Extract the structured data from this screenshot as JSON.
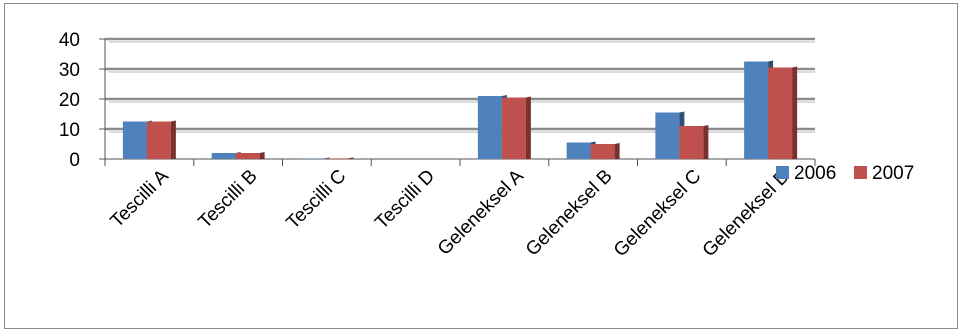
{
  "chart_data": {
    "type": "bar",
    "title": "",
    "xlabel": "",
    "ylabel": "",
    "ylim": [
      0,
      40
    ],
    "yticks": [
      "0",
      "10",
      "20",
      "30",
      "40"
    ],
    "grid": true,
    "legend_position": "right",
    "categories": [
      "Tescilli A",
      "Tescilli B",
      "Tescilli C",
      "Tescilli D",
      "Geleneksel A",
      "Geleneksel B",
      "Geleneksel C",
      "Geleneksel D"
    ],
    "series": [
      {
        "name": "2006",
        "color": "#4f81bd",
        "values": [
          12.5,
          2,
          0.2,
          0,
          21,
          5.5,
          15.5,
          32.5
        ]
      },
      {
        "name": "2007",
        "color": "#c0504d",
        "values": [
          12.5,
          2,
          0.2,
          0,
          20.5,
          5,
          11,
          30.5
        ]
      }
    ]
  }
}
